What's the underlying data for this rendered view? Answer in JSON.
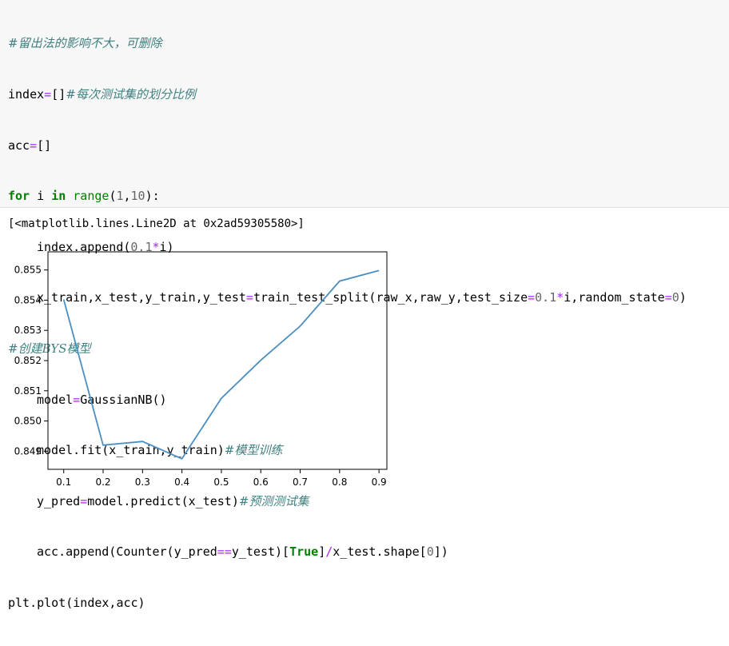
{
  "code": {
    "lines": [
      "#留出法的影响不大，可删除",
      "index=[]#每次测试集的划分比例",
      "acc=[]",
      "for i in range(1,10):",
      "index.append(0.1*i)",
      "x_train,x_test,y_train,y_test=train_test_split(raw_x,raw_y,test_size=0.1*i,random_state=0)",
      "#创建BYS模型",
      "model=GaussianNB()",
      "model.fit(x_train,y_train)#模型训练",
      "y_pred=model.predict(x_test)#预测测试集",
      "acc.append(Counter(y_pred==y_test)[True]/x_test.shape[0])",
      "plt.plot(index,acc)"
    ]
  },
  "output": {
    "repr": "[<matplotlib.lines.Line2D at 0x2ad59305580>]"
  },
  "chart_data": {
    "type": "line",
    "title": "",
    "xlabel": "",
    "ylabel": "",
    "x": [
      0.1,
      0.2,
      0.3,
      0.4,
      0.5,
      0.6,
      0.7,
      0.8,
      0.9
    ],
    "series": [
      {
        "values": [
          0.85402,
          0.8492,
          0.84932,
          0.84875,
          0.85075,
          0.85201,
          0.85314,
          0.85463,
          0.85498
        ],
        "color": "#4a8fc1"
      }
    ],
    "xlim": [
      0.06,
      0.92
    ],
    "ylim": [
      0.8484,
      0.8556
    ],
    "xticks": [
      "0.1",
      "0.2",
      "0.3",
      "0.4",
      "0.5",
      "0.6",
      "0.7",
      "0.8",
      "0.9"
    ],
    "yticks": [
      "0.849",
      "0.850",
      "0.851",
      "0.852",
      "0.853",
      "0.854",
      "0.855"
    ],
    "grid": false
  }
}
